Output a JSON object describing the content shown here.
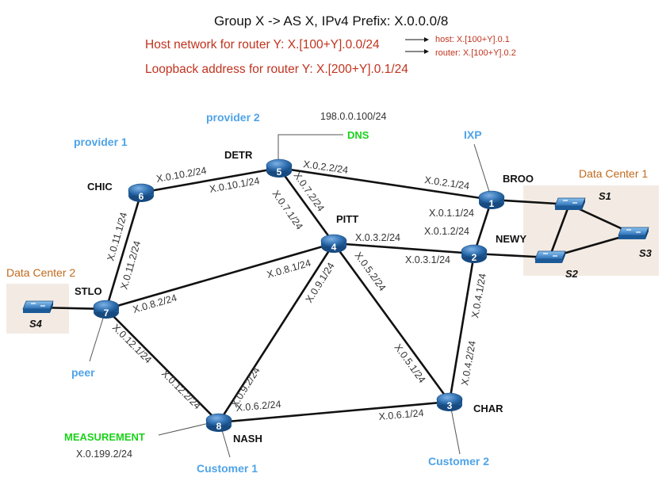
{
  "header": {
    "title": "Group X -> AS X, IPv4 Prefix: X.0.0.0/8",
    "host_network": "Host network for router Y: X.[100+Y].0.0/24",
    "loopback": "Loopback address for router Y: X.[200+Y].0.1/24",
    "host_arrow": "host: X.[100+Y].0.1",
    "router_arrow": "router: X.[100+Y].0.2"
  },
  "routers": [
    {
      "id": "1",
      "name": "BROO"
    },
    {
      "id": "2",
      "name": "NEWY"
    },
    {
      "id": "3",
      "name": "CHAR"
    },
    {
      "id": "4",
      "name": "PITT"
    },
    {
      "id": "5",
      "name": "DETR"
    },
    {
      "id": "6",
      "name": "CHIC"
    },
    {
      "id": "7",
      "name": "STLO"
    },
    {
      "id": "8",
      "name": "NASH"
    }
  ],
  "links": {
    "chic_detr_6": "X.0.10.2/24",
    "chic_detr_5": "X.0.10.1/24",
    "detr_broo_5": "X.0.2.2/24",
    "detr_broo_1": "X.0.2.1/24",
    "detr_pitt_5": "X.0.7.2/24",
    "detr_pitt_4": "X.0.7.1/24",
    "broo_newy_1": "X.0.1.1/24",
    "broo_newy_2": "X.0.1.2/24",
    "pitt_newy_4": "X.0.3.2/24",
    "pitt_newy_2": "X.0.3.1/24",
    "chic_stlo_7": "X.0.11.1/24",
    "chic_stlo_6": "X.0.11.2/24",
    "stlo_pitt_4": "X.0.8.1/24",
    "stlo_pitt_7": "X.0.8.2/24",
    "pitt_nash_4": "X.0.9.1/24",
    "pitt_nash_8": "X.0.9.2/24",
    "pitt_char_4": "X.0.5.2/24",
    "pitt_char_3": "X.0.5.1/24",
    "newy_char_2": "X.0.4.1/24",
    "newy_char_3": "X.0.4.2/24",
    "stlo_nash_7": "X.0.12.1/24",
    "stlo_nash_8": "X.0.12.2/24",
    "nash_char_8": "X.0.6.2/24",
    "nash_char_3": "X.0.6.1/24"
  },
  "labels": {
    "provider1": "provider 1",
    "provider2": "provider 2",
    "dns": "DNS",
    "dns_ip": "198.0.0.100/24",
    "ixp": "IXP",
    "peer": "peer",
    "measurement": "MEASUREMENT",
    "measurement_ip": "X.0.199.2/24",
    "customer1": "Customer 1",
    "customer2": "Customer 2"
  },
  "datacenters": {
    "dc1": {
      "label": "Data Center 1",
      "switches": [
        "S1",
        "S2",
        "S3"
      ]
    },
    "dc2": {
      "label": "Data Center 2",
      "switches": [
        "S4"
      ]
    }
  },
  "colors": {
    "router_blue": "#2f6fb0",
    "label_blue": "#4fa3e8",
    "green": "#1bd21b",
    "red_text": "#c0331f",
    "datacenter_fill": "#f3ebe3",
    "datacenter_text": "#c06a1c"
  }
}
